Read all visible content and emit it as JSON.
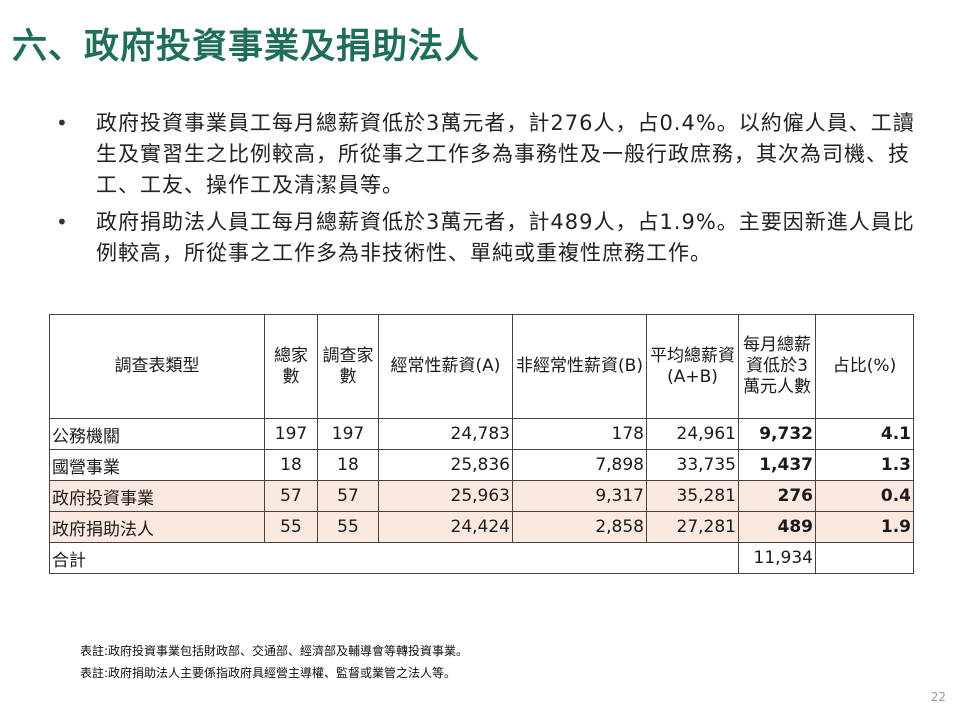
{
  "title": "六、政府投資事業及捐助法人",
  "bullets": [
    "政府投資事業員工每月總薪資低於3萬元者，計276人，占0.4%。以約僱人員、工讀生及實習生之比例較高，所從事之工作多為事務性及一般行政庶務，其次為司機、技工、工友、操作工及清潔員等。",
    "政府捐助法人員工每月總薪資低於3萬元者，計489人，占1.9%。主要因新進人員比例較高，所從事之工作多為非技術性、單純或重複性庶務工作。"
  ],
  "table": {
    "headers": [
      "調查表類型",
      "總家數",
      "調查家數",
      "經常性薪資(A)",
      "非經常性薪資(B)",
      "平均總薪資(A+B)",
      "每月總薪資低於3萬元人數",
      "占比(%)"
    ],
    "rows": [
      {
        "type": "公務機關",
        "total": "197",
        "surveyed": "197",
        "regular": "24,783",
        "irregular": "178",
        "avg": "24,961",
        "low": "9,732",
        "pct": "4.1"
      },
      {
        "type": "國營事業",
        "total": "18",
        "surveyed": "18",
        "regular": "25,836",
        "irregular": "7,898",
        "avg": "33,735",
        "low": "1,437",
        "pct": "1.3"
      },
      {
        "type": "政府投資事業",
        "total": "57",
        "surveyed": "57",
        "regular": "25,963",
        "irregular": "9,317",
        "avg": "35,281",
        "low": "276",
        "pct": "0.4"
      },
      {
        "type": "政府捐助法人",
        "total": "55",
        "surveyed": "55",
        "regular": "24,424",
        "irregular": "2,858",
        "avg": "27,281",
        "low": "489",
        "pct": "1.9"
      }
    ],
    "total_row": {
      "label": "合計",
      "low": "11,934"
    }
  },
  "notes": [
    "表註:政府投資事業包括財政部、交通部、經濟部及輔導會等轉投資事業。",
    "表註:政府捐助法人主要係指政府具經營主導權、監督或業管之法人等。"
  ],
  "page_number": "22",
  "colors": {
    "title": "#1f6e5a",
    "highlight_row": "#fbe9df"
  }
}
